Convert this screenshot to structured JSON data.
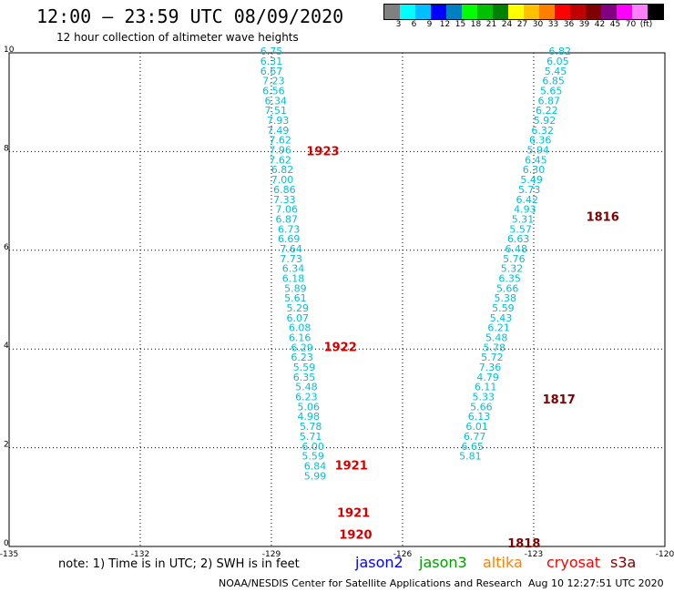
{
  "header": {
    "title": "12:00 – 23:59 UTC 08/09/2020",
    "subtitle": "12 hour collection of altimeter wave heights"
  },
  "colorbar": {
    "colors": [
      "#808080",
      "#00ffff",
      "#00bfff",
      "#0000ff",
      "#0080c0",
      "#00ff00",
      "#00c000",
      "#008000",
      "#ffff00",
      "#ffc000",
      "#ff8000",
      "#ff0000",
      "#c00000",
      "#800000",
      "#800080",
      "#ff00ff",
      "#ff80ff",
      "#000000"
    ],
    "labels": [
      "3",
      "6",
      "9",
      "12",
      "15",
      "18",
      "21",
      "24",
      "27",
      "30",
      "33",
      "36",
      "39",
      "42",
      "45",
      "70",
      "(ft)"
    ]
  },
  "chart_data": {
    "type": "scatter",
    "xlim": [
      -135,
      -120
    ],
    "ylim": [
      0,
      10
    ],
    "xticks": [
      "-135",
      "-132",
      "-129",
      "-126",
      "-123",
      "-120"
    ],
    "yticks": [
      "0",
      "2",
      "4",
      "6",
      "8",
      "10"
    ],
    "grid": true,
    "track_west": {
      "color": "#00bfd8",
      "points": [
        {
          "x": -129.0,
          "y": 9.96,
          "label": "6.75"
        },
        {
          "x": -129.0,
          "y": 9.76,
          "label": "6.31"
        },
        {
          "x": -129.0,
          "y": 9.56,
          "label": "6.67"
        },
        {
          "x": -128.95,
          "y": 9.36,
          "label": "7.23"
        },
        {
          "x": -128.95,
          "y": 9.16,
          "label": "6.56"
        },
        {
          "x": -128.9,
          "y": 8.96,
          "label": "6.34"
        },
        {
          "x": -128.9,
          "y": 8.76,
          "label": "7.51"
        },
        {
          "x": -128.85,
          "y": 8.56,
          "label": "7.93"
        },
        {
          "x": -128.85,
          "y": 8.36,
          "label": "7.49"
        },
        {
          "x": -128.8,
          "y": 8.16,
          "label": "7.62"
        },
        {
          "x": -128.8,
          "y": 7.96,
          "label": "7.96"
        },
        {
          "x": -128.8,
          "y": 7.76,
          "label": "7.62"
        },
        {
          "x": -128.75,
          "y": 7.56,
          "label": "6.82"
        },
        {
          "x": -128.75,
          "y": 7.36,
          "label": "7.00"
        },
        {
          "x": -128.7,
          "y": 7.16,
          "label": "6.86"
        },
        {
          "x": -128.7,
          "y": 6.96,
          "label": "7.33"
        },
        {
          "x": -128.65,
          "y": 6.76,
          "label": "7.06"
        },
        {
          "x": -128.65,
          "y": 6.56,
          "label": "6.87"
        },
        {
          "x": -128.6,
          "y": 6.36,
          "label": "6.73"
        },
        {
          "x": -128.6,
          "y": 6.16,
          "label": "6.69"
        },
        {
          "x": -128.55,
          "y": 5.96,
          "label": "7.64"
        },
        {
          "x": -128.55,
          "y": 5.76,
          "label": "7.73"
        },
        {
          "x": -128.5,
          "y": 5.56,
          "label": "6.34"
        },
        {
          "x": -128.5,
          "y": 5.36,
          "label": "6.18"
        },
        {
          "x": -128.45,
          "y": 5.16,
          "label": "5.89"
        },
        {
          "x": -128.45,
          "y": 4.96,
          "label": "5.61"
        },
        {
          "x": -128.4,
          "y": 4.76,
          "label": "5.29"
        },
        {
          "x": -128.4,
          "y": 4.56,
          "label": "6.07"
        },
        {
          "x": -128.35,
          "y": 4.36,
          "label": "6.08"
        },
        {
          "x": -128.35,
          "y": 4.16,
          "label": "6.16"
        },
        {
          "x": -128.3,
          "y": 3.96,
          "label": "6.29"
        },
        {
          "x": -128.3,
          "y": 3.76,
          "label": "6.23"
        },
        {
          "x": -128.25,
          "y": 3.56,
          "label": "5.59"
        },
        {
          "x": -128.25,
          "y": 3.36,
          "label": "6.35"
        },
        {
          "x": -128.2,
          "y": 3.16,
          "label": "5.48"
        },
        {
          "x": -128.2,
          "y": 2.96,
          "label": "6.23"
        },
        {
          "x": -128.15,
          "y": 2.76,
          "label": "5.06"
        },
        {
          "x": -128.15,
          "y": 2.56,
          "label": "4.98"
        },
        {
          "x": -128.1,
          "y": 2.36,
          "label": "5.78"
        },
        {
          "x": -128.1,
          "y": 2.16,
          "label": "5.71"
        },
        {
          "x": -128.05,
          "y": 1.96,
          "label": "6.00"
        },
        {
          "x": -128.05,
          "y": 1.76,
          "label": "5.59"
        },
        {
          "x": -128.0,
          "y": 1.56,
          "label": "6.84"
        },
        {
          "x": -128.0,
          "y": 1.36,
          "label": "5.99"
        }
      ]
    },
    "track_east": {
      "color": "#00bfd8",
      "points": [
        {
          "x": -122.4,
          "y": 9.96,
          "label": "6.82"
        },
        {
          "x": -122.45,
          "y": 9.76,
          "label": "6.05"
        },
        {
          "x": -122.5,
          "y": 9.56,
          "label": "5.45"
        },
        {
          "x": -122.55,
          "y": 9.36,
          "label": "6.85"
        },
        {
          "x": -122.6,
          "y": 9.16,
          "label": "5.65"
        },
        {
          "x": -122.65,
          "y": 8.96,
          "label": "6.87"
        },
        {
          "x": -122.7,
          "y": 8.76,
          "label": "6.22"
        },
        {
          "x": -122.75,
          "y": 8.56,
          "label": "5.92"
        },
        {
          "x": -122.8,
          "y": 8.36,
          "label": "6.32"
        },
        {
          "x": -122.85,
          "y": 8.16,
          "label": "6.36"
        },
        {
          "x": -122.9,
          "y": 7.96,
          "label": "5.94"
        },
        {
          "x": -122.95,
          "y": 7.76,
          "label": "6.45"
        },
        {
          "x": -123.0,
          "y": 7.56,
          "label": "6.30"
        },
        {
          "x": -123.05,
          "y": 7.36,
          "label": "5.49"
        },
        {
          "x": -123.1,
          "y": 7.16,
          "label": "5.73"
        },
        {
          "x": -123.15,
          "y": 6.96,
          "label": "6.42"
        },
        {
          "x": -123.2,
          "y": 6.76,
          "label": "4.93"
        },
        {
          "x": -123.25,
          "y": 6.56,
          "label": "5.31"
        },
        {
          "x": -123.3,
          "y": 6.36,
          "label": "5.57"
        },
        {
          "x": -123.35,
          "y": 6.16,
          "label": "6.63"
        },
        {
          "x": -123.4,
          "y": 5.96,
          "label": "6.48"
        },
        {
          "x": -123.45,
          "y": 5.76,
          "label": "5.76"
        },
        {
          "x": -123.5,
          "y": 5.56,
          "label": "5.32"
        },
        {
          "x": -123.55,
          "y": 5.36,
          "label": "6.35"
        },
        {
          "x": -123.6,
          "y": 5.16,
          "label": "5.66"
        },
        {
          "x": -123.65,
          "y": 4.96,
          "label": "5.38"
        },
        {
          "x": -123.7,
          "y": 4.76,
          "label": "5.59"
        },
        {
          "x": -123.75,
          "y": 4.56,
          "label": "5.43"
        },
        {
          "x": -123.8,
          "y": 4.36,
          "label": "6.21"
        },
        {
          "x": -123.85,
          "y": 4.16,
          "label": "5.48"
        },
        {
          "x": -123.9,
          "y": 3.96,
          "label": "5.78"
        },
        {
          "x": -123.95,
          "y": 3.76,
          "label": "5.72"
        },
        {
          "x": -124.0,
          "y": 3.56,
          "label": "7.36"
        },
        {
          "x": -124.05,
          "y": 3.36,
          "label": "4.79"
        },
        {
          "x": -124.1,
          "y": 3.16,
          "label": "6.11"
        },
        {
          "x": -124.15,
          "y": 2.96,
          "label": "5.33"
        },
        {
          "x": -124.2,
          "y": 2.76,
          "label": "5.66"
        },
        {
          "x": -124.25,
          "y": 2.56,
          "label": "6.13"
        },
        {
          "x": -124.3,
          "y": 2.36,
          "label": "6.01"
        },
        {
          "x": -124.35,
          "y": 2.16,
          "label": "6.77"
        },
        {
          "x": -124.4,
          "y": 1.96,
          "label": "6.65"
        },
        {
          "x": -124.45,
          "y": 1.76,
          "label": "5.81"
        }
      ]
    },
    "time_labels": [
      {
        "x": -128.2,
        "y": 7.92,
        "label": "1923",
        "color": "#d00000"
      },
      {
        "x": -127.8,
        "y": 3.96,
        "label": "1922",
        "color": "#d00000"
      },
      {
        "x": -127.55,
        "y": 1.56,
        "label": "1921",
        "color": "#d00000"
      },
      {
        "x": -127.5,
        "y": 0.6,
        "label": "1921",
        "color": "#d00000"
      },
      {
        "x": -127.45,
        "y": 0.16,
        "label": "1920",
        "color": "#d00000"
      },
      {
        "x": -121.8,
        "y": 6.6,
        "label": "1816",
        "color": "#800000"
      },
      {
        "x": -122.8,
        "y": 2.9,
        "label": "1817",
        "color": "#800000"
      },
      {
        "x": -123.6,
        "y": -0.02,
        "label": "1818",
        "color": "#800000"
      }
    ]
  },
  "footer": {
    "note": "note:  1) Time is in UTC;  2) SWH is in feet",
    "legend": [
      {
        "label": "jason2",
        "color": "#0000ff"
      },
      {
        "label": "jason3",
        "color": "#00a000"
      },
      {
        "label": "altika",
        "color": "#ff8000"
      },
      {
        "label": "cryosat",
        "color": "#ff0000"
      },
      {
        "label": "s3a",
        "color": "#800000"
      }
    ],
    "credit": "NOAA/NESDIS Center for Satellite Applications and Research",
    "timestamp": "Aug 10 12:27:51 UTC 2020"
  }
}
